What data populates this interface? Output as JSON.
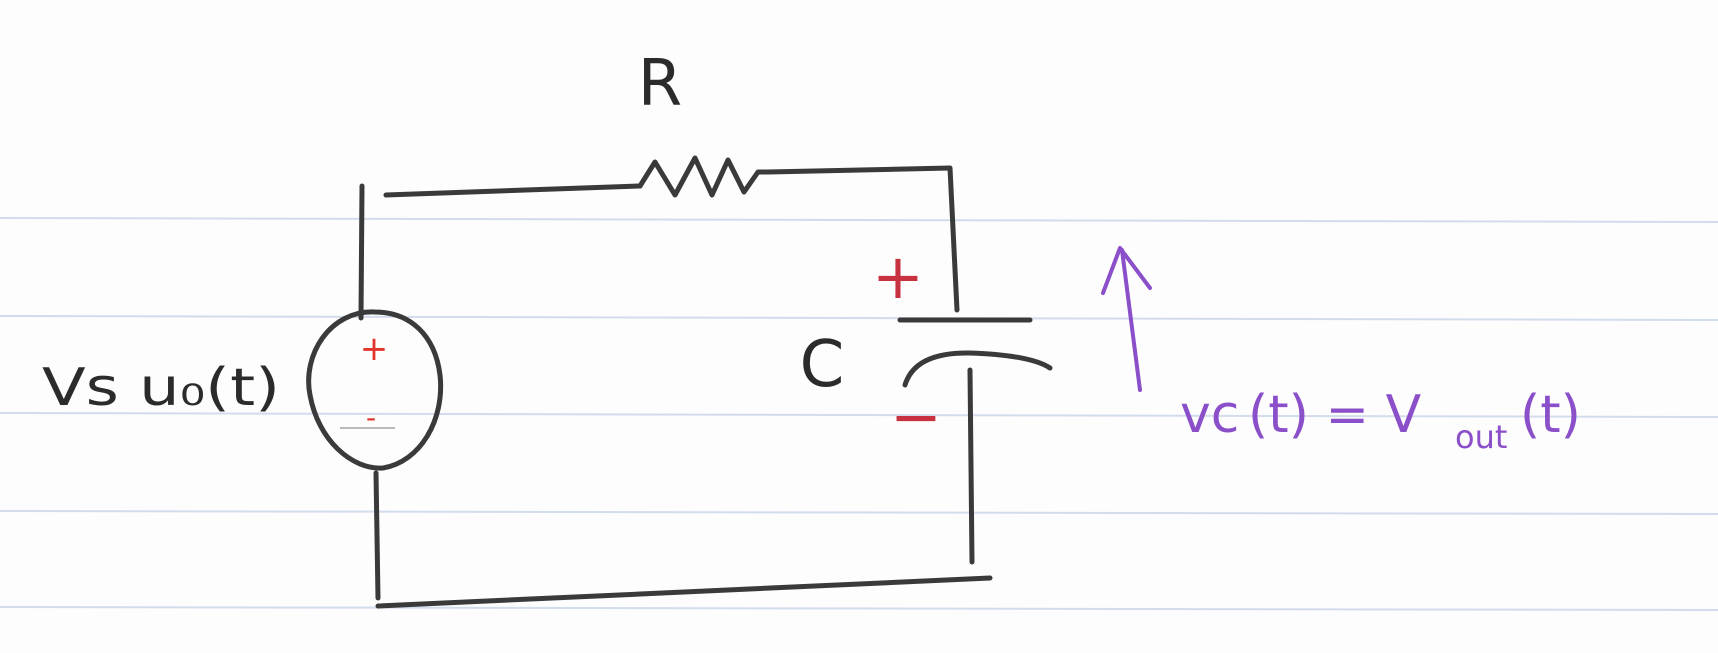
{
  "labels": {
    "resistor": "R",
    "capacitor": "C",
    "source": "Vs u₀(t)",
    "source_plus": "+",
    "source_minus": "-",
    "cap_plus": "+",
    "cap_minus": "−",
    "output_vc": "vc",
    "output_t1": "(t) = V",
    "output_sub": "out",
    "output_t2": "(t)"
  },
  "colors": {
    "ink": "#3a3a3a",
    "polarity": "#e0342c",
    "polarity_dark": "#c8313f",
    "output": "#8a4fc9",
    "ruled_line": "#d3dcec"
  }
}
